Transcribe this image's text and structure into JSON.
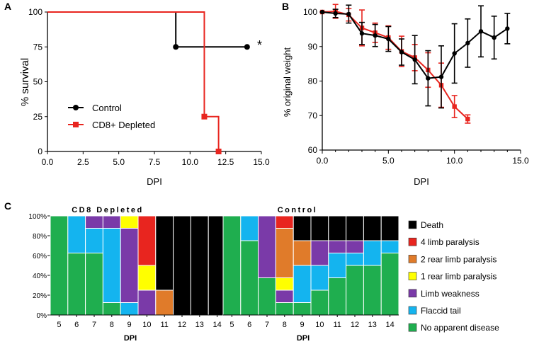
{
  "colors": {
    "control": "#000000",
    "cd8": "#e8251f",
    "death": "#000000",
    "limb4": "#e8251f",
    "rear2": "#e07b2a",
    "rear1": "#ffff00",
    "weakness": "#7a3aa8",
    "flaccid": "#14b4ef",
    "none": "#1fae4f"
  },
  "panel_labels": [
    "A",
    "B",
    "C"
  ],
  "chart_data": [
    {
      "panel": "A",
      "type": "line",
      "title": "",
      "xlabel": "DPI",
      "ylabel": "% survival",
      "xlim": [
        0,
        15
      ],
      "ylim": [
        0,
        100
      ],
      "xticks": [
        "0.0",
        "2.5",
        "5.0",
        "7.5",
        "10.0",
        "12.5",
        "15.0"
      ],
      "yticks": [
        "0",
        "25",
        "50",
        "75",
        "100"
      ],
      "significance": "*",
      "series": [
        {
          "name": "Control",
          "style": "step",
          "marker": "circle",
          "x": [
            0,
            9,
            14
          ],
          "y": [
            100,
            75,
            75
          ],
          "marked_x": [
            9,
            14
          ]
        },
        {
          "name": "CD8+ Depleted",
          "style": "step",
          "marker": "square",
          "x": [
            0,
            11,
            12
          ],
          "y": [
            100,
            25,
            0
          ],
          "marked_x": [
            11,
            12
          ]
        }
      ],
      "legend": [
        "Control",
        "CD8+ Depleted"
      ]
    },
    {
      "panel": "B",
      "type": "line",
      "title": "",
      "xlabel": "DPI",
      "ylabel": "% original weight",
      "xlim": [
        0,
        15
      ],
      "ylim": [
        60,
        100
      ],
      "xticks": [
        "0.0",
        "5.0",
        "10.0",
        "15.0"
      ],
      "yticks": [
        "60",
        "70",
        "80",
        "90",
        "100"
      ],
      "series": [
        {
          "name": "Control",
          "x": [
            0,
            1,
            2,
            3,
            4,
            5,
            6,
            7,
            8,
            9,
            10,
            11,
            12,
            13,
            14
          ],
          "y": [
            100,
            99.6,
            99.4,
            93.8,
            93.2,
            92.2,
            88.4,
            86.2,
            80.8,
            81.2,
            88.0,
            91.0,
            94.4,
            92.6,
            95.2
          ],
          "err": [
            0,
            1.2,
            2.6,
            3.2,
            3.2,
            3.6,
            3.8,
            7.0,
            8.0,
            9.0,
            8.6,
            7.0,
            7.4,
            6.2,
            4.4
          ]
        },
        {
          "name": "CD8+ Depleted",
          "x": [
            0,
            1,
            2,
            3,
            4,
            5,
            6,
            7,
            8,
            9,
            10,
            11
          ],
          "y": [
            100,
            100.2,
            99.2,
            95.4,
            94.0,
            92.6,
            88.6,
            86.8,
            83.2,
            78.8,
            72.6,
            69.0
          ],
          "err": [
            0,
            2.0,
            1.8,
            5.2,
            2.8,
            3.4,
            4.4,
            3.8,
            5.0,
            6.4,
            3.2,
            1.2
          ]
        }
      ]
    },
    {
      "panel": "C-left",
      "type": "bar",
      "stacked": true,
      "title": "CD8 Depleted",
      "xlabel": "DPI",
      "ylabel": "",
      "ylim": [
        0,
        100
      ],
      "yticks": [
        "0%",
        "20%",
        "40%",
        "60%",
        "80%",
        "100%"
      ],
      "categories": [
        "5",
        "6",
        "7",
        "8",
        "9",
        "10",
        "11",
        "12",
        "13",
        "14"
      ],
      "series": [
        {
          "name": "No apparent disease",
          "key": "none",
          "values": [
            100,
            62.5,
            62.5,
            12.5,
            0,
            0,
            0,
            0,
            0,
            0
          ]
        },
        {
          "name": "Flaccid tail",
          "key": "flaccid",
          "values": [
            0,
            37.5,
            25,
            75,
            12.5,
            0,
            0,
            0,
            0,
            0
          ]
        },
        {
          "name": "Limb weakness",
          "key": "weakness",
          "values": [
            0,
            0,
            12.5,
            12.5,
            75,
            25,
            0,
            0,
            0,
            0
          ]
        },
        {
          "name": "1 rear limb paralysis",
          "key": "rear1",
          "values": [
            0,
            0,
            0,
            0,
            12.5,
            25,
            0,
            0,
            0,
            0
          ]
        },
        {
          "name": "2 rear limb paralysis",
          "key": "rear2",
          "values": [
            0,
            0,
            0,
            0,
            0,
            0,
            25,
            0,
            0,
            0
          ]
        },
        {
          "name": "4 limb paralysis",
          "key": "limb4",
          "values": [
            0,
            0,
            0,
            0,
            0,
            50,
            0,
            0,
            0,
            0
          ]
        },
        {
          "name": "Death",
          "key": "death",
          "values": [
            0,
            0,
            0,
            0,
            0,
            0,
            75,
            100,
            100,
            100
          ]
        }
      ]
    },
    {
      "panel": "C-right",
      "type": "bar",
      "stacked": true,
      "title": "Control",
      "xlabel": "DPI",
      "ylabel": "",
      "ylim": [
        0,
        100
      ],
      "categories": [
        "5",
        "6",
        "7",
        "8",
        "9",
        "10",
        "11",
        "12",
        "13",
        "14"
      ],
      "series": [
        {
          "name": "No apparent disease",
          "key": "none",
          "values": [
            100,
            75,
            37.5,
            12.5,
            12.5,
            25,
            37.5,
            50,
            50,
            62.5
          ]
        },
        {
          "name": "Flaccid tail",
          "key": "flaccid",
          "values": [
            0,
            25,
            0,
            0,
            37.5,
            25,
            25,
            12.5,
            25,
            12.5
          ]
        },
        {
          "name": "Limb weakness",
          "key": "weakness",
          "values": [
            0,
            0,
            62.5,
            12.5,
            0,
            25,
            12.5,
            12.5,
            0,
            0
          ]
        },
        {
          "name": "1 rear limb paralysis",
          "key": "rear1",
          "values": [
            0,
            0,
            0,
            12.5,
            0,
            0,
            0,
            0,
            0,
            0
          ]
        },
        {
          "name": "2 rear limb paralysis",
          "key": "rear2",
          "values": [
            0,
            0,
            0,
            50,
            25,
            0,
            0,
            0,
            0,
            0
          ]
        },
        {
          "name": "4 limb paralysis",
          "key": "limb4",
          "values": [
            0,
            0,
            0,
            12.5,
            0,
            0,
            0,
            0,
            0,
            0
          ]
        },
        {
          "name": "Death",
          "key": "death",
          "values": [
            0,
            0,
            0,
            0,
            25,
            25,
            25,
            25,
            25,
            25
          ]
        }
      ]
    }
  ],
  "legend_c": [
    {
      "label": "Death",
      "key": "death"
    },
    {
      "label": "4 limb paralysis",
      "key": "limb4"
    },
    {
      "label": "2 rear limb paralysis",
      "key": "rear2"
    },
    {
      "label": "1 rear limb paralysis",
      "key": "rear1"
    },
    {
      "label": "Limb weakness",
      "key": "weakness"
    },
    {
      "label": "Flaccid tail",
      "key": "flaccid"
    },
    {
      "label": "No apparent disease",
      "key": "none"
    }
  ]
}
